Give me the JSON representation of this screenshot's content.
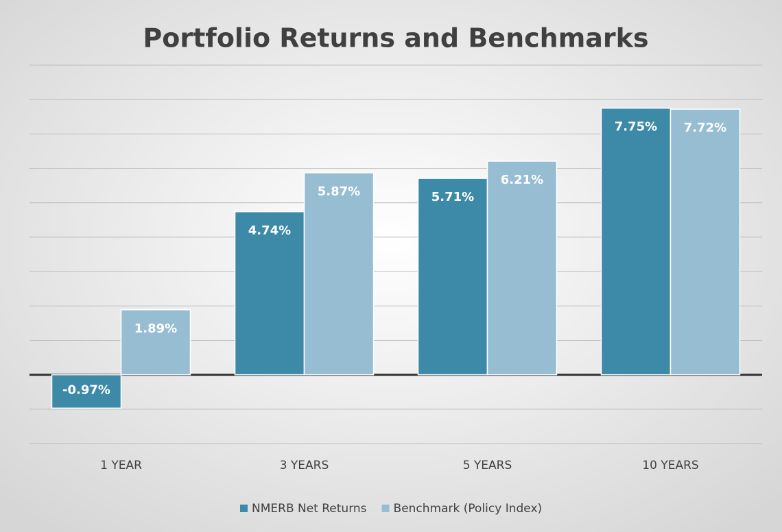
{
  "chart_data": {
    "type": "bar",
    "title": "Portfolio Returns and Benchmarks",
    "categories": [
      "1 YEAR",
      "3 YEARS",
      "5 YEARS",
      "10 YEARS"
    ],
    "series": [
      {
        "name": "NMERB Net Returns",
        "color": "#3d8aa8",
        "values": [
          -0.97,
          4.74,
          5.71,
          7.75
        ],
        "value_labels": [
          "-0.97%",
          "4.74%",
          "5.71%",
          "7.75%"
        ]
      },
      {
        "name": "Benchmark (Policy Index)",
        "color": "#97bdd3",
        "values": [
          1.89,
          5.87,
          6.21,
          7.72
        ],
        "value_labels": [
          "1.89%",
          "5.87%",
          "6.21%",
          "7.72%"
        ]
      }
    ],
    "ylim": [
      -2,
      9
    ],
    "yticks": [
      -2,
      -1,
      0,
      1,
      2,
      3,
      4,
      5,
      6,
      7,
      8,
      9
    ],
    "grid": true,
    "legend": "bottom"
  }
}
